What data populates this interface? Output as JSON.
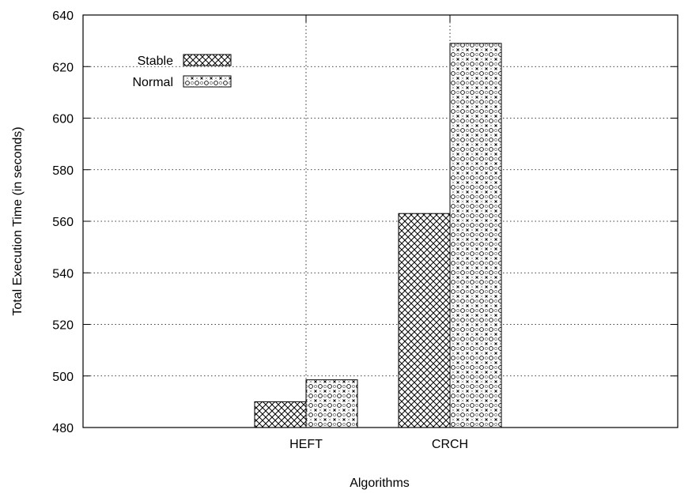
{
  "chart_data": {
    "type": "bar",
    "categories": [
      "HEFT",
      "CRCH"
    ],
    "series": [
      {
        "name": "Stable",
        "values": [
          490,
          563
        ],
        "pattern": "crosshatch"
      },
      {
        "name": "Normal",
        "values": [
          498.5,
          629
        ],
        "pattern": "x-circle"
      }
    ],
    "xlabel": "Algorithms",
    "ylabel": "Total Execution Time (in seconds)",
    "ylim": [
      480,
      640
    ],
    "yticks": [
      480,
      500,
      520,
      540,
      560,
      580,
      600,
      620,
      640
    ],
    "grid": true,
    "legend_position": "top-left",
    "colors": {
      "ink": "#000000",
      "background": "#ffffff"
    }
  }
}
